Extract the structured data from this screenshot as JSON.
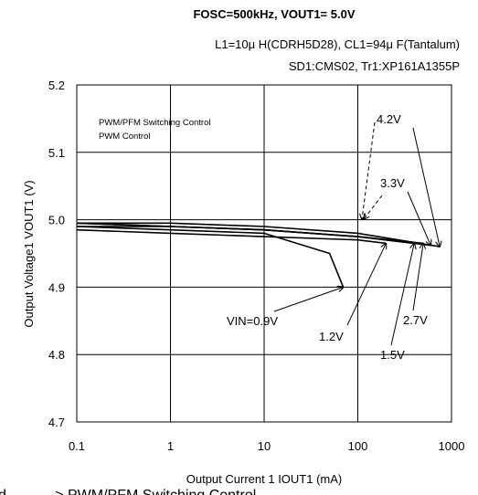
{
  "chart_data": {
    "type": "line",
    "title": "FOSC=500kHz, VOUT1= 5.0V",
    "subtitle_lines": [
      "L1=10μ H(CDRH5D28), CL1=94μ F(Tantalum)",
      "SD1:CMS02, Tr1:XP161A1355P"
    ],
    "xlabel": "Output Current 1 IOUT1 (mA)",
    "ylabel": "Output Voltage1  VOUT1 (V)",
    "x_scale": "log",
    "xlim": [
      0.1,
      1000
    ],
    "ylim": [
      4.7,
      5.2
    ],
    "x_ticks": [
      "0.1",
      "1",
      "10",
      "100",
      "1000"
    ],
    "y_ticks": [
      "4.7",
      "4.8",
      "4.9",
      "5.0",
      "5.1",
      "5.2"
    ],
    "grid": true,
    "legend_lines": [
      "PWM/PFM Switching Control",
      "PWM  Control"
    ],
    "series": [
      {
        "name": "VIN=0.9V",
        "x": [
          0.1,
          1,
          10,
          50,
          70
        ],
        "y": [
          4.99,
          4.985,
          4.98,
          4.95,
          4.9
        ]
      },
      {
        "name": "1.2V",
        "x": [
          0.1,
          1,
          10,
          100,
          200
        ],
        "y": [
          4.985,
          4.98,
          4.975,
          4.97,
          4.965
        ]
      },
      {
        "name": "1.5V",
        "x": [
          0.1,
          1,
          10,
          100,
          400
        ],
        "y": [
          4.995,
          4.99,
          4.985,
          4.975,
          4.965
        ]
      },
      {
        "name": "2.7V",
        "x": [
          0.1,
          1,
          10,
          100,
          500
        ],
        "y": [
          4.99,
          4.99,
          4.985,
          4.975,
          4.965
        ]
      },
      {
        "name": "3.3V",
        "x": [
          0.1,
          1,
          10,
          100,
          600
        ],
        "y": [
          4.995,
          4.99,
          4.985,
          4.975,
          4.962
        ]
      },
      {
        "name": "4.2V",
        "x": [
          0.1,
          1,
          10,
          100,
          750
        ],
        "y": [
          4.995,
          4.995,
          4.99,
          4.98,
          4.96
        ]
      }
    ],
    "annotations": [
      {
        "text": "VIN=0.9V"
      },
      {
        "text": "1.2V"
      },
      {
        "text": "1.5V"
      },
      {
        "text": "2.7V"
      },
      {
        "text": "3.3V"
      },
      {
        "text": "4.2V"
      }
    ]
  },
  "bottom_note": "d  - - - - - >  PWM/PFM Switching Control"
}
